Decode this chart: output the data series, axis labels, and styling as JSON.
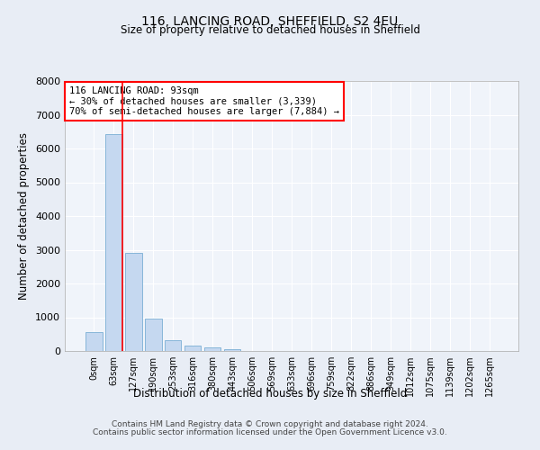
{
  "title1": "116, LANCING ROAD, SHEFFIELD, S2 4EU",
  "title2": "Size of property relative to detached houses in Sheffield",
  "xlabel": "Distribution of detached houses by size in Sheffield",
  "ylabel": "Number of detached properties",
  "bar_labels": [
    "0sqm",
    "63sqm",
    "127sqm",
    "190sqm",
    "253sqm",
    "316sqm",
    "380sqm",
    "443sqm",
    "506sqm",
    "569sqm",
    "633sqm",
    "696sqm",
    "759sqm",
    "822sqm",
    "886sqm",
    "949sqm",
    "1012sqm",
    "1075sqm",
    "1139sqm",
    "1202sqm",
    "1265sqm"
  ],
  "bar_values": [
    550,
    6420,
    2920,
    960,
    330,
    155,
    100,
    65,
    0,
    0,
    0,
    0,
    0,
    0,
    0,
    0,
    0,
    0,
    0,
    0,
    0
  ],
  "bar_color": "#c5d8f0",
  "bar_edge_color": "#7aafd4",
  "vline_x": 1.45,
  "vline_color": "red",
  "ylim": [
    0,
    8000
  ],
  "yticks": [
    0,
    1000,
    2000,
    3000,
    4000,
    5000,
    6000,
    7000,
    8000
  ],
  "annotation_text": "116 LANCING ROAD: 93sqm\n← 30% of detached houses are smaller (3,339)\n70% of semi-detached houses are larger (7,884) →",
  "annotation_box_color": "white",
  "annotation_box_edge": "red",
  "footer1": "Contains HM Land Registry data © Crown copyright and database right 2024.",
  "footer2": "Contains public sector information licensed under the Open Government Licence v3.0.",
  "bg_color": "#e8edf5",
  "plot_bg_color": "#f0f4fa",
  "grid_color": "#ffffff",
  "spine_color": "#aaaaaa"
}
